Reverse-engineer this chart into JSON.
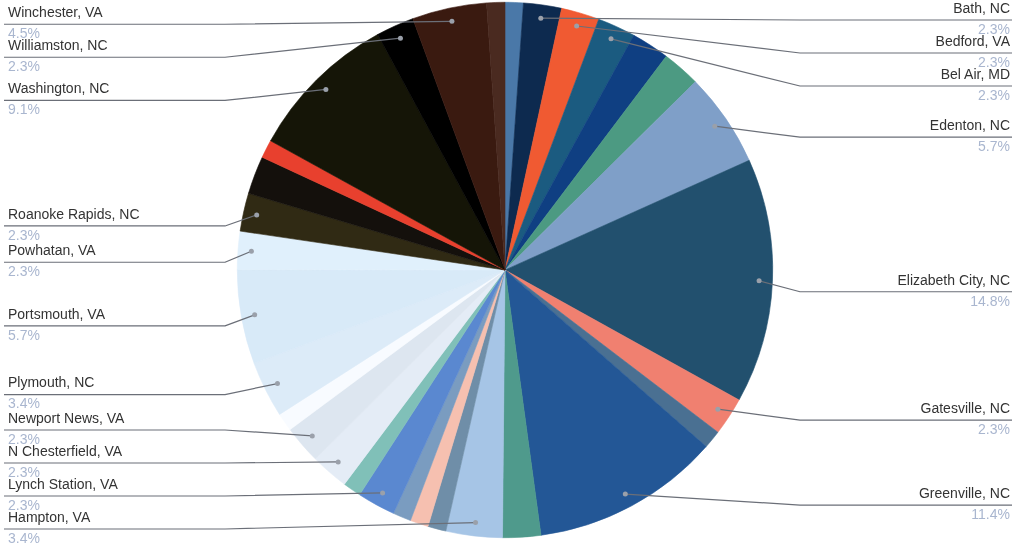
{
  "chart_data": {
    "type": "pie",
    "legend": false,
    "categories": [
      null,
      "Bath, NC",
      "Bedford, VA",
      "Bel Air, MD",
      null,
      null,
      "Edenton, NC",
      "Elizabeth City, NC",
      "Gatesville, NC",
      null,
      "Greenville, NC",
      null,
      "Hampton, VA",
      null,
      null,
      null,
      "Lynch Station, VA",
      null,
      "N Chesterfield, VA",
      "Newport News, VA",
      null,
      "Plymouth, NC",
      "Portsmouth, VA",
      "Powhatan, VA",
      "Roanoke Rapids, NC",
      null,
      null,
      "Washington, NC",
      "Williamston, NC",
      "Winchester, VA",
      null
    ],
    "values": [
      1.1,
      2.3,
      2.3,
      2.3,
      2.3,
      2.3,
      5.7,
      14.8,
      2.3,
      1.1,
      11.4,
      2.3,
      3.4,
      1.1,
      1.1,
      1.1,
      2.3,
      1.1,
      2.3,
      2.3,
      1.1,
      3.4,
      5.7,
      2.3,
      2.3,
      2.3,
      1.1,
      9.1,
      2.3,
      4.5,
      1.1
    ],
    "value_labels": [
      null,
      "2.3%",
      "2.3%",
      "2.3%",
      null,
      null,
      "5.7%",
      "14.8%",
      "2.3%",
      null,
      "11.4%",
      null,
      "3.4%",
      null,
      null,
      null,
      "2.3%",
      null,
      "2.3%",
      "2.3%",
      null,
      "3.4%",
      "5.7%",
      "2.3%",
      "2.3%",
      null,
      null,
      "9.1%",
      "2.3%",
      "4.5%",
      null
    ],
    "colors": [
      "#4a78a8",
      "#0d2a4f",
      "#f05a32",
      "#1b5b80",
      "#0f3f82",
      "#4c9a82",
      "#7f9fc8",
      "#22506e",
      "#f08070",
      "#4a7092",
      "#235796",
      "#4f9a8c",
      "#a6c5e6",
      "#6f8ea8",
      "#f6c0b0",
      "#7a9cc0",
      "#5a88d0",
      "#80c0b8",
      "#e4ecf6",
      "#dde6f0",
      "#f8fbff",
      "#dcebf8",
      "#d8eaf8",
      "#e0f0fc",
      "#302a14",
      "#14100c",
      "#e8402e",
      "#151507",
      "#000000",
      "#3a1a10",
      "#4a2a20"
    ]
  }
}
